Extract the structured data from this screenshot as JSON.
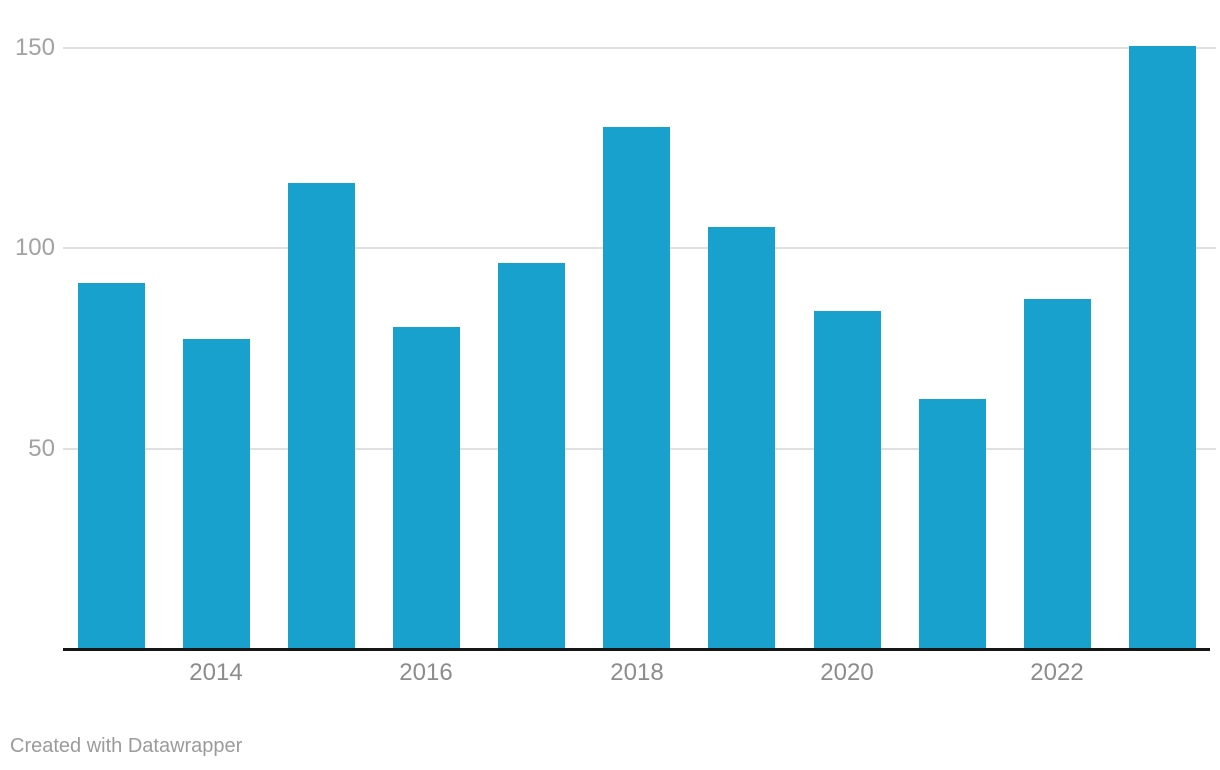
{
  "chart_data": {
    "type": "bar",
    "x": [
      "2013",
      "2014",
      "2015",
      "2016",
      "2017",
      "2018",
      "2019",
      "2020",
      "2021",
      "2022",
      "2023"
    ],
    "values": [
      91,
      77,
      116,
      80,
      96,
      130,
      105,
      84,
      62,
      87,
      150
    ],
    "title": "",
    "xlabel": "",
    "ylabel": "",
    "ylim": [
      0,
      155
    ],
    "y_ticks": [
      50,
      100,
      150
    ],
    "x_tick_labels": [
      "2014",
      "2016",
      "2018",
      "2020",
      "2022"
    ],
    "x_tick_bar_indexes": [
      1,
      3,
      5,
      7,
      9
    ],
    "grid": "horizontal-gridlines-only",
    "legend": "none",
    "bar_color": "#18a1cd"
  },
  "colors": {
    "bar": "#18a1cd",
    "gridline": "#e0e0e0",
    "axis_line": "#161616",
    "y_tick_text": "#a2a2a2",
    "x_tick_text": "#8c8c8c",
    "attribution_text": "#9b9b9b",
    "background": "#ffffff"
  },
  "footer": {
    "attribution": "Created with Datawrapper"
  }
}
